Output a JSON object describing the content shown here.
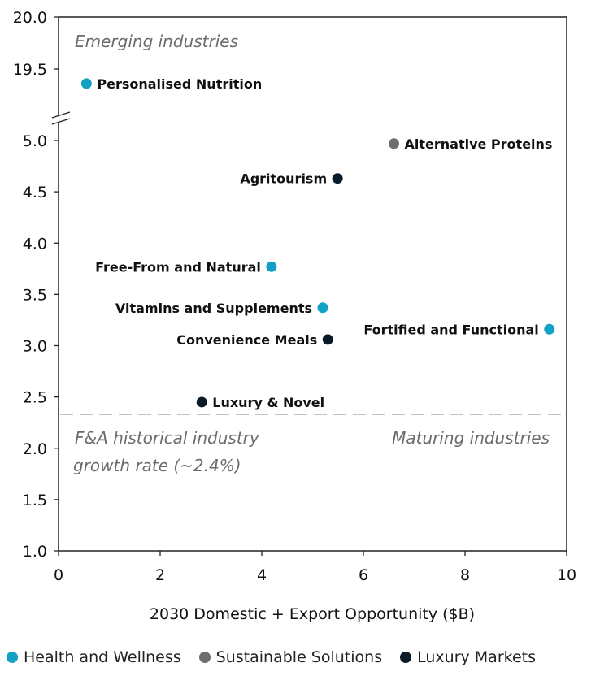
{
  "chart_data": {
    "type": "scatter",
    "title": "",
    "xlabel": "2030 Domestic + Export Opportunity ($B)",
    "ylabel": "",
    "xlim": [
      0,
      10
    ],
    "ylim_lower": [
      1.0,
      5.0
    ],
    "ylim_upper": [
      19.5,
      20.0
    ],
    "y_axis_break": true,
    "grid": false,
    "legend_position": "bottom",
    "x_ticks": [
      "0",
      "2",
      "4",
      "6",
      "8",
      "10"
    ],
    "x_tick_values": [
      0,
      2,
      4,
      6,
      8,
      10
    ],
    "y_ticks_lower": [
      "1.0",
      "1.5",
      "2.0",
      "2.5",
      "3.0",
      "3.5",
      "4.0",
      "4.5",
      "5.0"
    ],
    "y_tick_values_lower": [
      1.0,
      1.5,
      2.0,
      2.5,
      3.0,
      3.5,
      4.0,
      4.5,
      5.0
    ],
    "y_ticks_upper": [
      "19.5",
      "20.0"
    ],
    "y_tick_values_upper": [
      19.5,
      20.0
    ],
    "reference_line": {
      "y": 2.33,
      "style": "dashed",
      "color": "#bbbbbb"
    },
    "annotations": [
      {
        "id": "emerging",
        "text": "Emerging industries",
        "anchor": "top-left"
      },
      {
        "id": "historical1",
        "text": "F&A historical industry",
        "anchor": "below-line-left"
      },
      {
        "id": "historical2",
        "text": "growth rate (~2.4%)",
        "anchor": "below-line-left"
      },
      {
        "id": "maturing",
        "text": "Maturing industries",
        "anchor": "below-line-right"
      }
    ],
    "series": [
      {
        "name": "Health and Wellness",
        "color": "#12a0c3",
        "points": [
          {
            "label": "Personalised Nutrition",
            "x": 0.55,
            "y": 19.36,
            "label_side": "right"
          },
          {
            "label": "Free-From and Natural",
            "x": 4.19,
            "y": 3.77,
            "label_side": "left"
          },
          {
            "label": "Vitamins and Supplements",
            "x": 5.2,
            "y": 3.37,
            "label_side": "left"
          },
          {
            "label": "Fortified and Functional",
            "x": 9.66,
            "y": 3.16,
            "label_side": "left"
          }
        ]
      },
      {
        "name": "Sustainable Solutions",
        "color": "#6e6e6e",
        "points": [
          {
            "label": "Alternative Proteins",
            "x": 6.6,
            "y": 4.97,
            "label_side": "right"
          }
        ]
      },
      {
        "name": "Luxury Markets",
        "color": "#0b1a28",
        "points": [
          {
            "label": "Agritourism",
            "x": 5.49,
            "y": 4.63,
            "label_side": "left"
          },
          {
            "label": "Convenience Meals",
            "x": 5.3,
            "y": 3.06,
            "label_side": "left"
          },
          {
            "label": "Luxury & Novel",
            "x": 2.82,
            "y": 2.45,
            "label_side": "right"
          }
        ]
      }
    ]
  }
}
